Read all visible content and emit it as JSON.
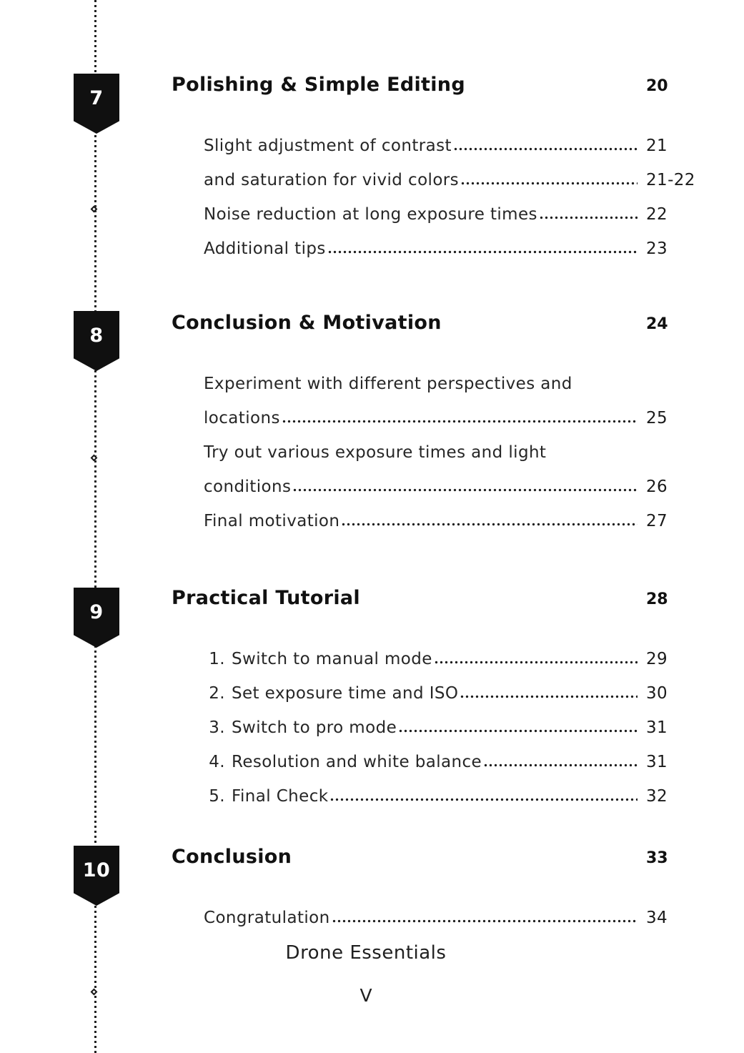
{
  "colors": {
    "ink": "#1e1e1e",
    "heading_ink": "#111111",
    "marker_bg": "#101010",
    "marker_text": "#ffffff",
    "background": "#ffffff"
  },
  "sections": [
    {
      "number": "7",
      "title": "Polishing & Simple Editing",
      "page": "20",
      "items": [
        {
          "lines": [
            "Slight adjustment of contrast"
          ],
          "page": "21"
        },
        {
          "lines": [
            "and saturation for vivid colors"
          ],
          "page": "21-22"
        },
        {
          "lines": [
            "Noise reduction at long exposure times"
          ],
          "page": "22"
        },
        {
          "lines": [
            "Additional tips"
          ],
          "page": "23"
        }
      ]
    },
    {
      "number": "8",
      "title": "Conclusion & Motivation",
      "page": "24",
      "items": [
        {
          "lines": [
            "Experiment with different perspectives and",
            "locations"
          ],
          "page": "25"
        },
        {
          "lines": [
            "Try out various exposure times and light",
            "conditions"
          ],
          "page": "26"
        },
        {
          "lines": [
            "Final motivation"
          ],
          "page": "27"
        }
      ]
    },
    {
      "number": "9",
      "title": "Practical Tutorial",
      "page": "28",
      "items": [
        {
          "num": "1.",
          "lines": [
            "Switch to manual mode"
          ],
          "page": "29"
        },
        {
          "num": "2.",
          "lines": [
            "Set exposure time and ISO"
          ],
          "page": "30"
        },
        {
          "num": "3.",
          "lines": [
            "Switch to pro mode"
          ],
          "page": "31"
        },
        {
          "num": "4.",
          "lines": [
            "Resolution and white balance"
          ],
          "page": "31"
        },
        {
          "num": "5.",
          "lines": [
            "Final Check"
          ],
          "page": "32"
        }
      ]
    },
    {
      "number": "10",
      "title": "Conclusion",
      "page": "33",
      "items": [
        {
          "lines": [
            "Congratulation"
          ],
          "page": "34"
        }
      ]
    }
  ],
  "footer": {
    "book_title": "Drone Essentials",
    "page_numeral": "V"
  }
}
